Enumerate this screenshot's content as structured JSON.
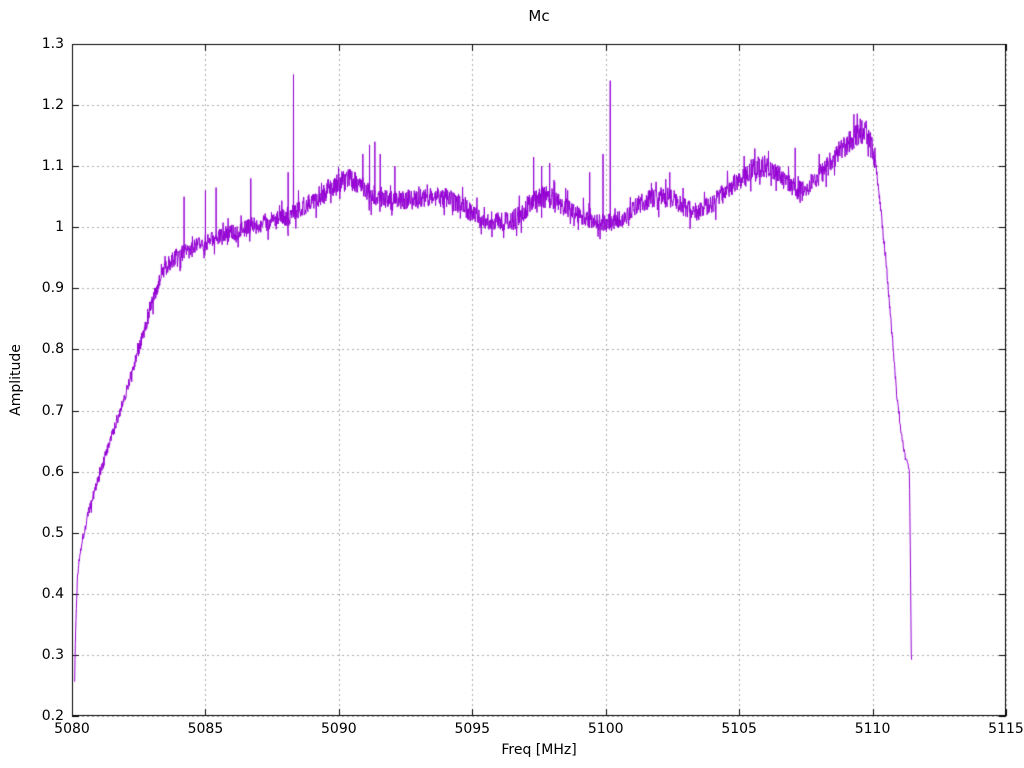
{
  "window": {
    "background": "#ffffff"
  },
  "colors": {
    "line": "#9400d3",
    "grid": "#adadad",
    "axis": "#000000",
    "text": "#000000"
  },
  "chart_data": {
    "type": "line",
    "title": "Mc",
    "xlabel": "Freq [MHz]",
    "ylabel": "Amplitude",
    "xlim": [
      5080,
      5115
    ],
    "ylim": [
      0.2,
      1.3
    ],
    "xticks": {
      "values": [
        5080,
        5085,
        5090,
        5095,
        5100,
        5105,
        5110,
        5115
      ],
      "labels": [
        "5080",
        "5085",
        "5090",
        "5095",
        "5100",
        "5105",
        "5110",
        "5115"
      ]
    },
    "yticks": {
      "values": [
        0.2,
        0.3,
        0.4,
        0.5,
        0.6,
        0.7,
        0.8,
        0.9,
        1.0,
        1.1,
        1.2,
        1.3
      ],
      "labels": [
        "0.2",
        "0.3",
        "0.4",
        "0.5",
        "0.6",
        "0.7",
        "0.8",
        "0.9",
        "1",
        "1.1",
        "1.2",
        "1.3"
      ]
    },
    "grid": "dotted-major",
    "legend": "none",
    "tick_style": "inward-mirrored",
    "series": [
      {
        "name": "Mc",
        "color": "#9400d3",
        "style": "noisy-line",
        "x_start": 5080.1,
        "x_end": 5111.47,
        "sample_step": 0.0125,
        "noise_seed": 1337,
        "mean_curve": [
          [
            5080.1,
            0.26
          ],
          [
            5080.13,
            0.33
          ],
          [
            5080.2,
            0.425
          ],
          [
            5080.3,
            0.47
          ],
          [
            5080.6,
            0.53
          ],
          [
            5081.0,
            0.59
          ],
          [
            5081.4,
            0.645
          ],
          [
            5081.8,
            0.7
          ],
          [
            5082.2,
            0.755
          ],
          [
            5082.6,
            0.815
          ],
          [
            5083.0,
            0.875
          ],
          [
            5083.3,
            0.915
          ],
          [
            5083.6,
            0.94
          ],
          [
            5084.0,
            0.955
          ],
          [
            5084.5,
            0.965
          ],
          [
            5085.0,
            0.975
          ],
          [
            5085.6,
            0.985
          ],
          [
            5086.2,
            0.995
          ],
          [
            5086.6,
            1.0
          ],
          [
            5087.0,
            1.005
          ],
          [
            5087.5,
            1.01
          ],
          [
            5088.0,
            1.015
          ],
          [
            5088.5,
            1.03
          ],
          [
            5089.0,
            1.045
          ],
          [
            5089.5,
            1.06
          ],
          [
            5090.0,
            1.072
          ],
          [
            5090.4,
            1.078
          ],
          [
            5090.8,
            1.068
          ],
          [
            5091.2,
            1.055
          ],
          [
            5091.6,
            1.046
          ],
          [
            5092.0,
            1.042
          ],
          [
            5092.5,
            1.046
          ],
          [
            5093.0,
            1.046
          ],
          [
            5093.5,
            1.05
          ],
          [
            5094.0,
            1.048
          ],
          [
            5094.5,
            1.038
          ],
          [
            5095.0,
            1.022
          ],
          [
            5095.5,
            1.012
          ],
          [
            5096.0,
            1.008
          ],
          [
            5096.5,
            1.01
          ],
          [
            5097.0,
            1.028
          ],
          [
            5097.4,
            1.047
          ],
          [
            5097.8,
            1.05
          ],
          [
            5098.2,
            1.042
          ],
          [
            5098.6,
            1.03
          ],
          [
            5099.0,
            1.022
          ],
          [
            5099.4,
            1.012
          ],
          [
            5099.8,
            1.005
          ],
          [
            5100.1,
            1.008
          ],
          [
            5100.4,
            1.008
          ],
          [
            5100.8,
            1.022
          ],
          [
            5101.2,
            1.035
          ],
          [
            5101.6,
            1.045
          ],
          [
            5102.0,
            1.05
          ],
          [
            5102.4,
            1.048
          ],
          [
            5102.8,
            1.04
          ],
          [
            5103.2,
            1.025
          ],
          [
            5103.6,
            1.028
          ],
          [
            5104.0,
            1.038
          ],
          [
            5104.4,
            1.055
          ],
          [
            5104.8,
            1.07
          ],
          [
            5105.2,
            1.085
          ],
          [
            5105.6,
            1.097
          ],
          [
            5106.0,
            1.1
          ],
          [
            5106.4,
            1.09
          ],
          [
            5106.8,
            1.075
          ],
          [
            5107.2,
            1.06
          ],
          [
            5107.5,
            1.065
          ],
          [
            5107.8,
            1.078
          ],
          [
            5108.2,
            1.095
          ],
          [
            5108.6,
            1.115
          ],
          [
            5109.0,
            1.135
          ],
          [
            5109.4,
            1.15
          ],
          [
            5109.7,
            1.155
          ],
          [
            5109.95,
            1.14
          ],
          [
            5110.15,
            1.09
          ],
          [
            5110.35,
            1.01
          ],
          [
            5110.55,
            0.92
          ],
          [
            5110.75,
            0.81
          ],
          [
            5110.9,
            0.73
          ],
          [
            5111.05,
            0.67
          ],
          [
            5111.2,
            0.63
          ],
          [
            5111.32,
            0.612
          ],
          [
            5111.38,
            0.6
          ],
          [
            5111.42,
            0.45
          ],
          [
            5111.45,
            0.3
          ],
          [
            5111.47,
            0.29
          ]
        ],
        "noise_peak_to_peak": [
          [
            5080.1,
            0.012
          ],
          [
            5080.5,
            0.016
          ],
          [
            5081.0,
            0.02
          ],
          [
            5082.0,
            0.02
          ],
          [
            5083.0,
            0.024
          ],
          [
            5084.0,
            0.028
          ],
          [
            5085.0,
            0.028
          ],
          [
            5086.0,
            0.03
          ],
          [
            5087.0,
            0.03
          ],
          [
            5088.0,
            0.032
          ],
          [
            5089.0,
            0.034
          ],
          [
            5090.0,
            0.036
          ],
          [
            5091.0,
            0.036
          ],
          [
            5092.0,
            0.034
          ],
          [
            5093.0,
            0.034
          ],
          [
            5094.0,
            0.034
          ],
          [
            5095.0,
            0.032
          ],
          [
            5096.0,
            0.032
          ],
          [
            5097.0,
            0.036
          ],
          [
            5098.0,
            0.036
          ],
          [
            5099.0,
            0.032
          ],
          [
            5100.0,
            0.032
          ],
          [
            5101.0,
            0.032
          ],
          [
            5102.0,
            0.034
          ],
          [
            5103.0,
            0.032
          ],
          [
            5104.0,
            0.032
          ],
          [
            5105.0,
            0.034
          ],
          [
            5106.0,
            0.036
          ],
          [
            5107.0,
            0.034
          ],
          [
            5108.0,
            0.036
          ],
          [
            5109.0,
            0.038
          ],
          [
            5109.8,
            0.034
          ],
          [
            5110.3,
            0.018
          ],
          [
            5110.8,
            0.012
          ],
          [
            5111.2,
            0.008
          ],
          [
            5111.47,
            0.004
          ]
        ],
        "spikes": [
          [
            5084.2,
            1.05
          ],
          [
            5085.0,
            1.06
          ],
          [
            5085.4,
            1.065
          ],
          [
            5086.7,
            1.08
          ],
          [
            5088.1,
            1.09
          ],
          [
            5088.3,
            1.25
          ],
          [
            5090.9,
            1.12
          ],
          [
            5091.15,
            1.135
          ],
          [
            5091.35,
            1.14
          ],
          [
            5091.55,
            1.12
          ],
          [
            5092.1,
            1.1
          ],
          [
            5093.9,
            1.06
          ],
          [
            5097.3,
            1.115
          ],
          [
            5097.6,
            1.1
          ],
          [
            5097.9,
            1.105
          ],
          [
            5099.4,
            1.09
          ],
          [
            5099.9,
            1.12
          ],
          [
            5100.17,
            1.24
          ],
          [
            5102.4,
            1.09
          ],
          [
            5106.1,
            1.125
          ],
          [
            5107.1,
            1.13
          ],
          [
            5108.0,
            1.12
          ],
          [
            5109.3,
            1.185
          ],
          [
            5109.6,
            1.175
          ]
        ]
      }
    ]
  }
}
